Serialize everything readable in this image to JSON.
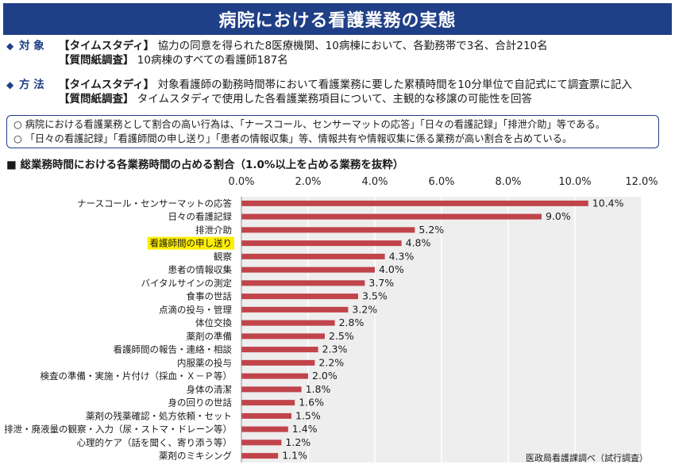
{
  "title": "病院における看護業務の実態",
  "target": {
    "key": "対 象",
    "rows": [
      {
        "tag": "【タイムスタディ】",
        "text": "協力の同意を得られた8医療機関、10病棟において、各勤務帯で3名、合計210名"
      },
      {
        "tag": "【質問紙調査】",
        "text": "10病棟のすべての看護師187名"
      }
    ]
  },
  "method": {
    "key": "方 法",
    "rows": [
      {
        "tag": "【タイムスタディ】",
        "text": "対象看護師の勤務時間帯において看護業務に要した累積時間を10分単位で自記式にて調査票に記入"
      },
      {
        "tag": "【質問紙調査】",
        "text": "タイムスタディで使用した各看護業務項目について、主観的な移譲の可能性を回答"
      }
    ]
  },
  "summary": [
    "○ 病院における看護業務として割合の高い行為は、「ナースコール、センサーマットの応答」「日々の看護記録」「排泄介助」等である。",
    "○ 「日々の看護記録」「看護師間の申し送り」「患者の情報収集」等、情報共有や情報収集に係る業務が高い割合を占めている。"
  ],
  "chart_heading": "■ 総業務時間における各業務時間の占める割合（1.0%以上を占める業務を抜粋）",
  "source_note": "医政局看護課調べ（試行調査）",
  "colors": {
    "title_bg": "#1f3f86",
    "bar": "#c0444a",
    "highlight": "#ffee00",
    "plot_bg": "#eeeeee"
  },
  "chart_data": {
    "type": "bar",
    "orientation": "horizontal",
    "categories": [
      "ナースコール・センサーマットの応答",
      "日々の看護記録",
      "排泄介助",
      "看護師間の申し送り",
      "観察",
      "患者の情報収集",
      "バイタルサインの測定",
      "食事の世話",
      "点滴の投与・管理",
      "体位交換",
      "薬剤の準備",
      "看護師間の報告・連絡・相談",
      "内服薬の投与",
      "検査の準備・実施・片付け（採血・Ｘ－Ｐ等）",
      "身体の清潔",
      "身の回りの世話",
      "薬剤の残薬確認・処方依頼・セット",
      "排泄・廃液量の観察・入力（尿・ストマ・ドレーン等）",
      "心理的ケア（話を聞く、寄り添う等）",
      "薬剤のミキシング"
    ],
    "values": [
      10.4,
      9.0,
      5.2,
      4.8,
      4.3,
      4.0,
      3.7,
      3.5,
      3.2,
      2.8,
      2.5,
      2.3,
      2.2,
      2.0,
      1.8,
      1.6,
      1.5,
      1.4,
      1.2,
      1.1
    ],
    "value_labels": [
      "10.4%",
      "9.0%",
      "5.2%",
      "4.8%",
      "4.3%",
      "4.0%",
      "3.7%",
      "3.5%",
      "3.2%",
      "2.8%",
      "2.5%",
      "2.3%",
      "2.2%",
      "2.0%",
      "1.8%",
      "1.6%",
      "1.5%",
      "1.4%",
      "1.2%",
      "1.1%"
    ],
    "highlighted_category": "看護師間の申し送り",
    "xlim": [
      0,
      12
    ],
    "xticks": [
      "0.0%",
      "2.0%",
      "4.0%",
      "6.0%",
      "8.0%",
      "10.0%",
      "12.0%"
    ],
    "xlabel": "",
    "ylabel": "",
    "grid": true,
    "legend": "none"
  }
}
